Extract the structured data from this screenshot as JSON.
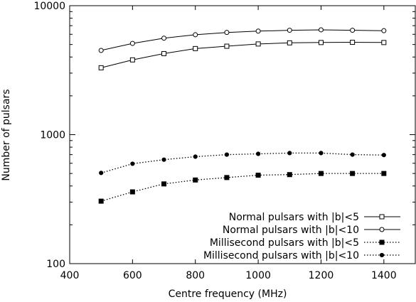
{
  "chart_data": {
    "type": "line",
    "title": "",
    "xlabel": "Centre frequency (MHz)",
    "ylabel": "Number of pulsars",
    "xlim": [
      400,
      1500
    ],
    "ylim": [
      100,
      10000
    ],
    "yscale": "log",
    "grid": false,
    "legend_position": "bottom-right",
    "x_ticks": [
      400,
      600,
      800,
      1000,
      1200,
      1400
    ],
    "x_tick_labels": [
      "400",
      "600",
      "800",
      "1000",
      "1200",
      "1400"
    ],
    "y_ticks": [
      100,
      1000,
      10000
    ],
    "y_tick_labels": [
      "100",
      "1000",
      "10000"
    ],
    "x": [
      500,
      600,
      700,
      800,
      900,
      1000,
      1100,
      1200,
      1300,
      1400
    ],
    "series": [
      {
        "name": "Normal pulsars with |b|<5",
        "line_style": "solid",
        "marker": "open-square",
        "values": [
          3300,
          3800,
          4250,
          4650,
          4850,
          5050,
          5150,
          5180,
          5200,
          5180
        ]
      },
      {
        "name": "Normal pulsars with |b|<10",
        "line_style": "solid",
        "marker": "open-circle",
        "values": [
          4500,
          5100,
          5600,
          5950,
          6200,
          6350,
          6450,
          6500,
          6450,
          6400
        ]
      },
      {
        "name": "Millisecond pulsars with |b|<5",
        "line_style": "dotted",
        "marker": "filled-square",
        "values": [
          305,
          360,
          415,
          445,
          465,
          485,
          490,
          500,
          500,
          500
        ]
      },
      {
        "name": "Millisecond pulsars with |b|<10",
        "line_style": "dotted",
        "marker": "filled-circle",
        "values": [
          505,
          595,
          640,
          675,
          700,
          710,
          720,
          720,
          700,
          695
        ]
      }
    ]
  }
}
